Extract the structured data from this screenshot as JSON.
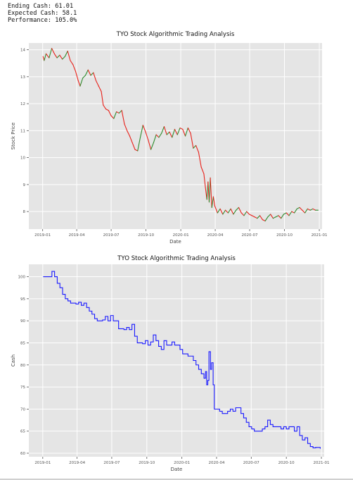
{
  "output": {
    "lines": [
      "Ending Cash: 61.01",
      "Expected Cash: 58.1",
      "Performance: 105.0%"
    ]
  },
  "colors": {
    "panel_bg": "#e5e5e5",
    "grid": "#ffffff",
    "price_up": "#2e8b2e",
    "price_down": "#e8211a",
    "cash": "#1a1aff",
    "text": "#333333"
  },
  "chart_data": [
    {
      "type": "line",
      "title": "TYO Stock Algorithmic Trading Analysis",
      "xlabel": "Date",
      "ylabel": "Stock Price",
      "ylim": [
        7.35,
        14.25
      ],
      "yticks": [
        8,
        9,
        10,
        11,
        12,
        13,
        14
      ],
      "xticks": [
        "2019-01",
        "2019-04",
        "2019-07",
        "2019-10",
        "2020-01",
        "2020-04",
        "2020-07",
        "2020-10",
        "2021-01"
      ],
      "grid": true,
      "coloring": "segments colored green when price rises, red when it falls",
      "series": [
        {
          "values": [
            {
              "x": "2019-01-02",
              "y": 13.75
            },
            {
              "x": "2019-01-05",
              "y": 13.6
            },
            {
              "x": "2019-01-10",
              "y": 13.85
            },
            {
              "x": "2019-01-18",
              "y": 13.7
            },
            {
              "x": "2019-01-25",
              "y": 14.05
            },
            {
              "x": "2019-02-01",
              "y": 13.85
            },
            {
              "x": "2019-02-08",
              "y": 13.7
            },
            {
              "x": "2019-02-15",
              "y": 13.8
            },
            {
              "x": "2019-02-22",
              "y": 13.65
            },
            {
              "x": "2019-03-01",
              "y": 13.75
            },
            {
              "x": "2019-03-08",
              "y": 13.95
            },
            {
              "x": "2019-03-15",
              "y": 13.6
            },
            {
              "x": "2019-03-22",
              "y": 13.45
            },
            {
              "x": "2019-03-29",
              "y": 13.2
            },
            {
              "x": "2019-04-05",
              "y": 12.85
            },
            {
              "x": "2019-04-10",
              "y": 12.65
            },
            {
              "x": "2019-04-17",
              "y": 12.95
            },
            {
              "x": "2019-04-24",
              "y": 13.05
            },
            {
              "x": "2019-05-01",
              "y": 13.25
            },
            {
              "x": "2019-05-08",
              "y": 13.05
            },
            {
              "x": "2019-05-15",
              "y": 13.15
            },
            {
              "x": "2019-05-22",
              "y": 12.85
            },
            {
              "x": "2019-05-29",
              "y": 12.65
            },
            {
              "x": "2019-06-05",
              "y": 12.45
            },
            {
              "x": "2019-06-10",
              "y": 11.95
            },
            {
              "x": "2019-06-17",
              "y": 11.8
            },
            {
              "x": "2019-06-24",
              "y": 11.75
            },
            {
              "x": "2019-07-01",
              "y": 11.55
            },
            {
              "x": "2019-07-08",
              "y": 11.45
            },
            {
              "x": "2019-07-15",
              "y": 11.7
            },
            {
              "x": "2019-07-22",
              "y": 11.65
            },
            {
              "x": "2019-07-29",
              "y": 11.75
            },
            {
              "x": "2019-08-05",
              "y": 11.25
            },
            {
              "x": "2019-08-12",
              "y": 11.0
            },
            {
              "x": "2019-08-19",
              "y": 10.8
            },
            {
              "x": "2019-08-26",
              "y": 10.55
            },
            {
              "x": "2019-09-02",
              "y": 10.3
            },
            {
              "x": "2019-09-09",
              "y": 10.25
            },
            {
              "x": "2019-09-16",
              "y": 10.75
            },
            {
              "x": "2019-09-23",
              "y": 11.2
            },
            {
              "x": "2019-09-30",
              "y": 10.95
            },
            {
              "x": "2019-10-07",
              "y": 10.65
            },
            {
              "x": "2019-10-14",
              "y": 10.3
            },
            {
              "x": "2019-10-21",
              "y": 10.55
            },
            {
              "x": "2019-10-28",
              "y": 10.85
            },
            {
              "x": "2019-11-04",
              "y": 10.75
            },
            {
              "x": "2019-11-11",
              "y": 10.9
            },
            {
              "x": "2019-11-18",
              "y": 11.15
            },
            {
              "x": "2019-11-25",
              "y": 10.85
            },
            {
              "x": "2019-12-02",
              "y": 10.95
            },
            {
              "x": "2019-12-09",
              "y": 10.75
            },
            {
              "x": "2019-12-16",
              "y": 11.05
            },
            {
              "x": "2019-12-23",
              "y": 10.85
            },
            {
              "x": "2019-12-30",
              "y": 11.1
            },
            {
              "x": "2020-01-06",
              "y": 11.05
            },
            {
              "x": "2020-01-13",
              "y": 10.8
            },
            {
              "x": "2020-01-20",
              "y": 11.1
            },
            {
              "x": "2020-01-27",
              "y": 10.9
            },
            {
              "x": "2020-02-03",
              "y": 10.35
            },
            {
              "x": "2020-02-10",
              "y": 10.45
            },
            {
              "x": "2020-02-17",
              "y": 10.2
            },
            {
              "x": "2020-02-24",
              "y": 9.65
            },
            {
              "x": "2020-03-02",
              "y": 9.4
            },
            {
              "x": "2020-03-06",
              "y": 8.9
            },
            {
              "x": "2020-03-10",
              "y": 8.45
            },
            {
              "x": "2020-03-13",
              "y": 9.1
            },
            {
              "x": "2020-03-16",
              "y": 8.35
            },
            {
              "x": "2020-03-19",
              "y": 9.25
            },
            {
              "x": "2020-03-23",
              "y": 8.15
            },
            {
              "x": "2020-03-27",
              "y": 8.55
            },
            {
              "x": "2020-03-31",
              "y": 8.2
            },
            {
              "x": "2020-04-07",
              "y": 7.95
            },
            {
              "x": "2020-04-14",
              "y": 8.1
            },
            {
              "x": "2020-04-21",
              "y": 7.9
            },
            {
              "x": "2020-04-28",
              "y": 8.05
            },
            {
              "x": "2020-05-05",
              "y": 7.95
            },
            {
              "x": "2020-05-12",
              "y": 8.1
            },
            {
              "x": "2020-05-19",
              "y": 7.9
            },
            {
              "x": "2020-05-26",
              "y": 8.05
            },
            {
              "x": "2020-06-02",
              "y": 8.15
            },
            {
              "x": "2020-06-09",
              "y": 7.95
            },
            {
              "x": "2020-06-16",
              "y": 7.85
            },
            {
              "x": "2020-06-23",
              "y": 8.0
            },
            {
              "x": "2020-06-30",
              "y": 7.9
            },
            {
              "x": "2020-07-07",
              "y": 7.85
            },
            {
              "x": "2020-07-14",
              "y": 7.8
            },
            {
              "x": "2020-07-21",
              "y": 7.75
            },
            {
              "x": "2020-07-28",
              "y": 7.85
            },
            {
              "x": "2020-08-04",
              "y": 7.7
            },
            {
              "x": "2020-08-11",
              "y": 7.65
            },
            {
              "x": "2020-08-18",
              "y": 7.8
            },
            {
              "x": "2020-08-25",
              "y": 7.9
            },
            {
              "x": "2020-09-01",
              "y": 7.75
            },
            {
              "x": "2020-09-08",
              "y": 7.8
            },
            {
              "x": "2020-09-15",
              "y": 7.85
            },
            {
              "x": "2020-09-22",
              "y": 7.75
            },
            {
              "x": "2020-09-29",
              "y": 7.9
            },
            {
              "x": "2020-10-06",
              "y": 7.95
            },
            {
              "x": "2020-10-13",
              "y": 7.85
            },
            {
              "x": "2020-10-20",
              "y": 8.0
            },
            {
              "x": "2020-10-27",
              "y": 7.95
            },
            {
              "x": "2020-11-03",
              "y": 8.1
            },
            {
              "x": "2020-11-10",
              "y": 8.15
            },
            {
              "x": "2020-11-17",
              "y": 8.05
            },
            {
              "x": "2020-11-24",
              "y": 7.95
            },
            {
              "x": "2020-12-01",
              "y": 8.1
            },
            {
              "x": "2020-12-08",
              "y": 8.05
            },
            {
              "x": "2020-12-15",
              "y": 8.1
            },
            {
              "x": "2020-12-22",
              "y": 8.05
            },
            {
              "x": "2020-12-29",
              "y": 8.05
            }
          ]
        }
      ]
    },
    {
      "type": "line",
      "title": "TYO Stock Algorithmic Trading Analysis",
      "xlabel": "Date",
      "ylabel": "Cash",
      "ylim": [
        59.2,
        102.8
      ],
      "yticks": [
        60,
        65,
        70,
        75,
        80,
        85,
        90,
        95,
        100
      ],
      "xticks": [
        "2019-01",
        "2019-04",
        "2019-07",
        "2019-10",
        "2020-01",
        "2020-04",
        "2020-07",
        "2020-10",
        "2021-01"
      ],
      "grid": true,
      "step": true,
      "series": [
        {
          "color": "#1a1aff",
          "values": [
            {
              "x": "2019-01-02",
              "y": 100.0
            },
            {
              "x": "2019-01-20",
              "y": 100.0
            },
            {
              "x": "2019-01-25",
              "y": 101.2
            },
            {
              "x": "2019-02-01",
              "y": 100.0
            },
            {
              "x": "2019-02-08",
              "y": 98.5
            },
            {
              "x": "2019-02-15",
              "y": 97.5
            },
            {
              "x": "2019-02-22",
              "y": 96.0
            },
            {
              "x": "2019-03-01",
              "y": 95.0
            },
            {
              "x": "2019-03-08",
              "y": 94.5
            },
            {
              "x": "2019-03-15",
              "y": 94.0
            },
            {
              "x": "2019-03-29",
              "y": 93.8
            },
            {
              "x": "2019-04-05",
              "y": 94.2
            },
            {
              "x": "2019-04-12",
              "y": 93.5
            },
            {
              "x": "2019-04-19",
              "y": 94.0
            },
            {
              "x": "2019-04-26",
              "y": 93.0
            },
            {
              "x": "2019-05-03",
              "y": 92.2
            },
            {
              "x": "2019-05-10",
              "y": 91.5
            },
            {
              "x": "2019-05-17",
              "y": 90.5
            },
            {
              "x": "2019-05-24",
              "y": 90.0
            },
            {
              "x": "2019-06-07",
              "y": 90.2
            },
            {
              "x": "2019-06-14",
              "y": 91.0
            },
            {
              "x": "2019-06-21",
              "y": 90.0
            },
            {
              "x": "2019-06-28",
              "y": 91.2
            },
            {
              "x": "2019-07-05",
              "y": 90.0
            },
            {
              "x": "2019-07-19",
              "y": 88.2
            },
            {
              "x": "2019-08-02",
              "y": 88.0
            },
            {
              "x": "2019-08-09",
              "y": 88.5
            },
            {
              "x": "2019-08-16",
              "y": 88.0
            },
            {
              "x": "2019-08-23",
              "y": 89.2
            },
            {
              "x": "2019-08-30",
              "y": 86.5
            },
            {
              "x": "2019-09-06",
              "y": 85.0
            },
            {
              "x": "2019-09-20",
              "y": 84.8
            },
            {
              "x": "2019-09-27",
              "y": 85.5
            },
            {
              "x": "2019-10-04",
              "y": 84.5
            },
            {
              "x": "2019-10-11",
              "y": 85.2
            },
            {
              "x": "2019-10-18",
              "y": 86.8
            },
            {
              "x": "2019-10-25",
              "y": 85.5
            },
            {
              "x": "2019-11-01",
              "y": 84.2
            },
            {
              "x": "2019-11-08",
              "y": 83.5
            },
            {
              "x": "2019-11-15",
              "y": 85.5
            },
            {
              "x": "2019-11-22",
              "y": 84.5
            },
            {
              "x": "2019-12-06",
              "y": 85.2
            },
            {
              "x": "2019-12-13",
              "y": 84.5
            },
            {
              "x": "2019-12-27",
              "y": 83.5
            },
            {
              "x": "2020-01-03",
              "y": 82.5
            },
            {
              "x": "2020-01-17",
              "y": 82.0
            },
            {
              "x": "2020-01-31",
              "y": 81.0
            },
            {
              "x": "2020-02-07",
              "y": 80.0
            },
            {
              "x": "2020-02-14",
              "y": 79.0
            },
            {
              "x": "2020-02-21",
              "y": 78.0
            },
            {
              "x": "2020-02-28",
              "y": 77.0
            },
            {
              "x": "2020-03-03",
              "y": 78.5
            },
            {
              "x": "2020-03-06",
              "y": 75.5
            },
            {
              "x": "2020-03-09",
              "y": 76.5
            },
            {
              "x": "2020-03-12",
              "y": 83.0
            },
            {
              "x": "2020-03-16",
              "y": 79.0
            },
            {
              "x": "2020-03-19",
              "y": 80.5
            },
            {
              "x": "2020-03-23",
              "y": 75.5
            },
            {
              "x": "2020-03-26",
              "y": 70.0
            },
            {
              "x": "2020-04-02",
              "y": 70.0
            },
            {
              "x": "2020-04-09",
              "y": 69.5
            },
            {
              "x": "2020-04-16",
              "y": 69.0
            },
            {
              "x": "2020-04-30",
              "y": 69.5
            },
            {
              "x": "2020-05-07",
              "y": 70.0
            },
            {
              "x": "2020-05-14",
              "y": 69.5
            },
            {
              "x": "2020-05-21",
              "y": 70.3
            },
            {
              "x": "2020-06-04",
              "y": 69.0
            },
            {
              "x": "2020-06-11",
              "y": 68.0
            },
            {
              "x": "2020-06-18",
              "y": 67.0
            },
            {
              "x": "2020-06-25",
              "y": 66.0
            },
            {
              "x": "2020-07-02",
              "y": 65.5
            },
            {
              "x": "2020-07-09",
              "y": 65.0
            },
            {
              "x": "2020-07-23",
              "y": 65.0
            },
            {
              "x": "2020-07-30",
              "y": 65.5
            },
            {
              "x": "2020-08-06",
              "y": 66.0
            },
            {
              "x": "2020-08-13",
              "y": 67.5
            },
            {
              "x": "2020-08-20",
              "y": 66.5
            },
            {
              "x": "2020-08-27",
              "y": 66.0
            },
            {
              "x": "2020-09-03",
              "y": 66.0
            },
            {
              "x": "2020-09-17",
              "y": 65.5
            },
            {
              "x": "2020-09-24",
              "y": 66.0
            },
            {
              "x": "2020-10-01",
              "y": 65.5
            },
            {
              "x": "2020-10-08",
              "y": 66.0
            },
            {
              "x": "2020-10-22",
              "y": 65.0
            },
            {
              "x": "2020-10-29",
              "y": 66.0
            },
            {
              "x": "2020-11-05",
              "y": 64.0
            },
            {
              "x": "2020-11-12",
              "y": 63.0
            },
            {
              "x": "2020-11-19",
              "y": 63.5
            },
            {
              "x": "2020-11-26",
              "y": 62.2
            },
            {
              "x": "2020-12-03",
              "y": 61.5
            },
            {
              "x": "2020-12-10",
              "y": 61.2
            },
            {
              "x": "2020-12-17",
              "y": 61.3
            },
            {
              "x": "2020-12-29",
              "y": 61.01
            }
          ]
        }
      ]
    }
  ]
}
